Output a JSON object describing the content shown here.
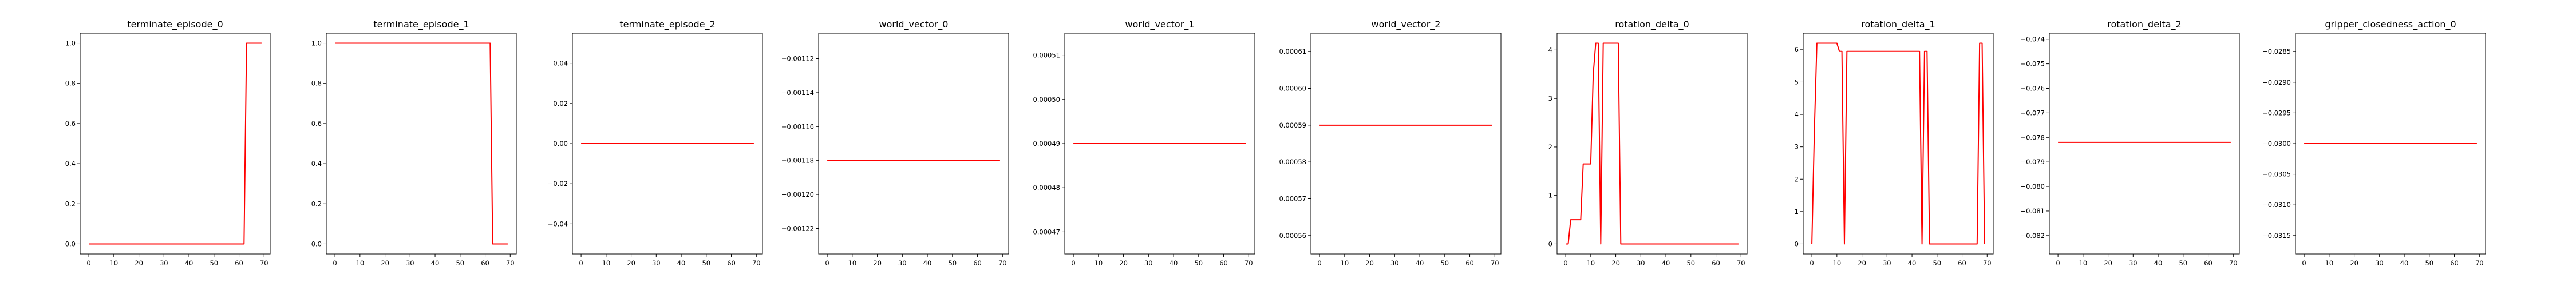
{
  "chart_data": [
    {
      "type": "line",
      "title": "terminate_episode_0",
      "xlim": [
        -3.45,
        72.45
      ],
      "ylim": [
        -0.05,
        1.05
      ],
      "xticks": [
        0,
        10,
        20,
        30,
        40,
        50,
        60,
        70
      ],
      "xtick_labels": [
        "0",
        "10",
        "20",
        "30",
        "40",
        "50",
        "60",
        "70"
      ],
      "yticks": [
        0.0,
        0.2,
        0.4,
        0.6,
        0.8,
        1.0
      ],
      "ytick_labels": [
        "0.0",
        "0.2",
        "0.4",
        "0.6",
        "0.8",
        "1.0"
      ],
      "series": [
        {
          "color": "#ff0000",
          "points": [
            [
              0,
              0
            ],
            [
              62,
              0
            ],
            [
              63,
              1
            ],
            [
              69,
              1
            ]
          ]
        }
      ]
    },
    {
      "type": "line",
      "title": "terminate_episode_1",
      "xlim": [
        -3.45,
        72.45
      ],
      "ylim": [
        -0.05,
        1.05
      ],
      "xticks": [
        0,
        10,
        20,
        30,
        40,
        50,
        60,
        70
      ],
      "xtick_labels": [
        "0",
        "10",
        "20",
        "30",
        "40",
        "50",
        "60",
        "70"
      ],
      "yticks": [
        0.0,
        0.2,
        0.4,
        0.6,
        0.8,
        1.0
      ],
      "ytick_labels": [
        "0.0",
        "0.2",
        "0.4",
        "0.6",
        "0.8",
        "1.0"
      ],
      "series": [
        {
          "color": "#ff0000",
          "points": [
            [
              0,
              1
            ],
            [
              62,
              1
            ],
            [
              63,
              0
            ],
            [
              69,
              0
            ]
          ]
        }
      ]
    },
    {
      "type": "line",
      "title": "terminate_episode_2",
      "xlim": [
        -3.45,
        72.45
      ],
      "ylim": [
        -0.055,
        0.055
      ],
      "xticks": [
        0,
        10,
        20,
        30,
        40,
        50,
        60,
        70
      ],
      "xtick_labels": [
        "0",
        "10",
        "20",
        "30",
        "40",
        "50",
        "60",
        "70"
      ],
      "yticks": [
        -0.04,
        -0.02,
        0.0,
        0.02,
        0.04
      ],
      "ytick_labels": [
        "−0.04",
        "−0.02",
        "0.00",
        "0.02",
        "0.04"
      ],
      "series": [
        {
          "color": "#ff0000",
          "points": [
            [
              0,
              0
            ],
            [
              69,
              0
            ]
          ]
        }
      ]
    },
    {
      "type": "line",
      "title": "world_vector_0",
      "xlim": [
        -3.45,
        72.45
      ],
      "ylim": [
        -0.001235,
        -0.001105
      ],
      "xticks": [
        0,
        10,
        20,
        30,
        40,
        50,
        60,
        70
      ],
      "xtick_labels": [
        "0",
        "10",
        "20",
        "30",
        "40",
        "50",
        "60",
        "70"
      ],
      "yticks": [
        -0.00112,
        -0.00114,
        -0.00116,
        -0.00118,
        -0.0012,
        -0.00122
      ],
      "ytick_labels": [
        "−0.00112",
        "−0.00114",
        "−0.00116",
        "−0.00118",
        "−0.00120",
        "−0.00122"
      ],
      "series": [
        {
          "color": "#ff0000",
          "points": [
            [
              0,
              -0.00118
            ],
            [
              69,
              -0.00118
            ]
          ]
        }
      ]
    },
    {
      "type": "line",
      "title": "world_vector_1",
      "xlim": [
        -3.45,
        72.45
      ],
      "ylim": [
        0.000465,
        0.000515
      ],
      "xticks": [
        0,
        10,
        20,
        30,
        40,
        50,
        60,
        70
      ],
      "xtick_labels": [
        "0",
        "10",
        "20",
        "30",
        "40",
        "50",
        "60",
        "70"
      ],
      "yticks": [
        0.00047,
        0.00048,
        0.00049,
        0.0005,
        0.00051
      ],
      "ytick_labels": [
        "0.00047",
        "0.00048",
        "0.00049",
        "0.00050",
        "0.00051"
      ],
      "series": [
        {
          "color": "#ff0000",
          "points": [
            [
              0,
              0.00049
            ],
            [
              69,
              0.00049
            ]
          ]
        }
      ]
    },
    {
      "type": "line",
      "title": "world_vector_2",
      "xlim": [
        -3.45,
        72.45
      ],
      "ylim": [
        0.000555,
        0.000615
      ],
      "xticks": [
        0,
        10,
        20,
        30,
        40,
        50,
        60,
        70
      ],
      "xtick_labels": [
        "0",
        "10",
        "20",
        "30",
        "40",
        "50",
        "60",
        "70"
      ],
      "yticks": [
        0.00056,
        0.00057,
        0.00058,
        0.00059,
        0.0006,
        0.00061
      ],
      "ytick_labels": [
        "0.00056",
        "0.00057",
        "0.00058",
        "0.00059",
        "0.00060",
        "0.00061"
      ],
      "series": [
        {
          "color": "#ff0000",
          "points": [
            [
              0,
              0.00059
            ],
            [
              69,
              0.00059
            ]
          ]
        }
      ]
    },
    {
      "type": "line",
      "title": "rotation_delta_0",
      "xlim": [
        -3.45,
        72.45
      ],
      "ylim": [
        -0.207,
        4.347
      ],
      "xticks": [
        0,
        10,
        20,
        30,
        40,
        50,
        60,
        70
      ],
      "xtick_labels": [
        "0",
        "10",
        "20",
        "30",
        "40",
        "50",
        "60",
        "70"
      ],
      "yticks": [
        0,
        1,
        2,
        3,
        4
      ],
      "ytick_labels": [
        "0",
        "1",
        "2",
        "3",
        "4"
      ],
      "series": [
        {
          "color": "#ff0000",
          "points": [
            [
              0,
              0
            ],
            [
              1,
              0
            ],
            [
              2,
              0.5
            ],
            [
              5,
              0.5
            ],
            [
              6,
              0.5
            ],
            [
              7,
              1.65
            ],
            [
              10,
              1.65
            ],
            [
              11,
              3.5
            ],
            [
              12,
              4.14
            ],
            [
              13,
              4.14
            ],
            [
              14,
              0
            ],
            [
              15,
              4.14
            ],
            [
              21,
              4.14
            ],
            [
              22,
              0
            ],
            [
              69,
              0
            ]
          ]
        }
      ]
    },
    {
      "type": "line",
      "title": "rotation_delta_1",
      "xlim": [
        -3.45,
        72.45
      ],
      "ylim": [
        -0.31,
        6.51
      ],
      "xticks": [
        0,
        10,
        20,
        30,
        40,
        50,
        60,
        70
      ],
      "xtick_labels": [
        "0",
        "10",
        "20",
        "30",
        "40",
        "50",
        "60",
        "70"
      ],
      "yticks": [
        0,
        1,
        2,
        3,
        4,
        5,
        6
      ],
      "ytick_labels": [
        "0",
        "1",
        "2",
        "3",
        "4",
        "5",
        "6"
      ],
      "series": [
        {
          "color": "#ff0000",
          "points": [
            [
              0,
              0
            ],
            [
              1,
              3.5
            ],
            [
              2,
              6.2
            ],
            [
              3,
              6.2
            ],
            [
              4,
              6.2
            ],
            [
              6,
              6.2
            ],
            [
              10,
              6.2
            ],
            [
              11,
              5.95
            ],
            [
              12,
              5.95
            ],
            [
              13,
              0
            ],
            [
              14,
              5.95
            ],
            [
              20,
              5.95
            ],
            [
              43,
              5.95
            ],
            [
              44,
              0
            ],
            [
              45,
              5.95
            ],
            [
              46,
              5.95
            ],
            [
              47,
              0
            ],
            [
              48,
              0
            ],
            [
              66,
              0
            ],
            [
              67,
              6.2
            ],
            [
              68,
              6.2
            ],
            [
              69,
              0
            ]
          ]
        }
      ]
    },
    {
      "type": "line",
      "title": "rotation_delta_2",
      "xlim": [
        -3.45,
        72.45
      ],
      "ylim": [
        -0.08275,
        -0.07375
      ],
      "xticks": [
        0,
        10,
        20,
        30,
        40,
        50,
        60,
        70
      ],
      "xtick_labels": [
        "0",
        "10",
        "20",
        "30",
        "40",
        "50",
        "60",
        "70"
      ],
      "yticks": [
        -0.074,
        -0.075,
        -0.076,
        -0.077,
        -0.078,
        -0.079,
        -0.08,
        -0.081,
        -0.082
      ],
      "ytick_labels": [
        "−0.074",
        "−0.075",
        "−0.076",
        "−0.077",
        "−0.078",
        "−0.079",
        "−0.080",
        "−0.081",
        "−0.082"
      ],
      "series": [
        {
          "color": "#ff0000",
          "points": [
            [
              0,
              -0.0782
            ],
            [
              69,
              -0.0782
            ]
          ]
        }
      ]
    },
    {
      "type": "line",
      "title": "gripper_closedness_action_0",
      "xlim": [
        -3.45,
        72.45
      ],
      "ylim": [
        -0.0318,
        -0.0282
      ],
      "xticks": [
        0,
        10,
        20,
        30,
        40,
        50,
        60,
        70
      ],
      "xtick_labels": [
        "0",
        "10",
        "20",
        "30",
        "40",
        "50",
        "60",
        "70"
      ],
      "yticks": [
        -0.0285,
        -0.029,
        -0.0295,
        -0.03,
        -0.0305,
        -0.031,
        -0.0315
      ],
      "ytick_labels": [
        "−0.0285",
        "−0.0290",
        "−0.0295",
        "−0.0300",
        "−0.0305",
        "−0.0310",
        "−0.0315"
      ],
      "series": [
        {
          "color": "#ff0000",
          "points": [
            [
              0,
              -0.03
            ],
            [
              69,
              -0.03
            ]
          ]
        }
      ]
    }
  ]
}
